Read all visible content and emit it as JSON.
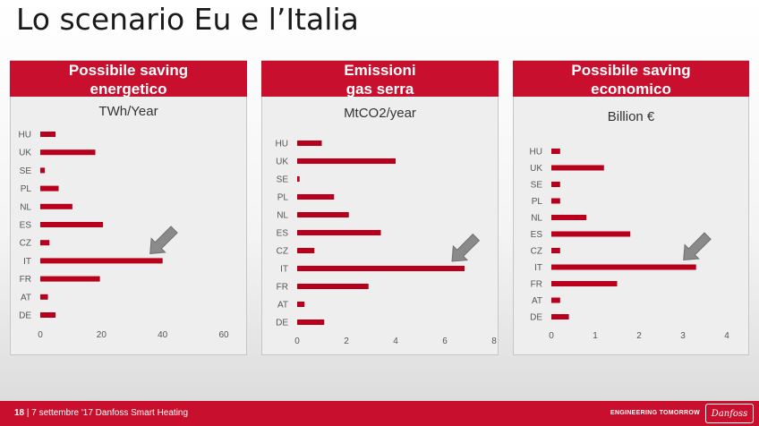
{
  "page": {
    "title": "Lo scenario Eu e l’Italia"
  },
  "panels": [
    {
      "header": [
        "Possibile saving",
        "energetico"
      ],
      "unit": "TWh/Year"
    },
    {
      "header": [
        "Emissioni",
        "gas serra"
      ],
      "unit": "MtCO2/year"
    },
    {
      "header": [
        "Possibile saving",
        "economico"
      ],
      "unit": "Billion €"
    }
  ],
  "chart_data": [
    {
      "type": "bar",
      "orientation": "horizontal",
      "title": "Possibile saving energetico",
      "xlabel": "TWh/Year",
      "categories": [
        "HU",
        "UK",
        "SE",
        "PL",
        "NL",
        "ES",
        "CZ",
        "IT",
        "FR",
        "AT",
        "DE"
      ],
      "values": [
        5,
        18,
        1.5,
        6,
        10.5,
        20.5,
        3,
        40,
        19.5,
        2.5,
        5
      ],
      "xlim": [
        0,
        60
      ],
      "xticks": [
        0,
        20,
        40,
        60
      ],
      "xtick_labels": [
        "0",
        "20",
        "40",
        "60"
      ],
      "highlight": "IT",
      "bar_color": "#b8001c",
      "grid": false
    },
    {
      "type": "bar",
      "orientation": "horizontal",
      "title": "Emissioni gas serra",
      "xlabel": "MtCO2/year",
      "categories": [
        "HU",
        "UK",
        "SE",
        "PL",
        "NL",
        "ES",
        "CZ",
        "IT",
        "FR",
        "AT",
        "DE"
      ],
      "values": [
        1.0,
        4.0,
        0.1,
        1.5,
        2.1,
        3.4,
        0.7,
        6.8,
        2.9,
        0.3,
        1.1
      ],
      "xlim": [
        0,
        8
      ],
      "xticks": [
        0,
        2,
        4,
        6,
        8
      ],
      "xtick_labels": [
        "0",
        "2",
        "4",
        "6",
        "8"
      ],
      "highlight": "IT",
      "bar_color": "#b8001c",
      "grid": false
    },
    {
      "type": "bar",
      "orientation": "horizontal",
      "title": "Possibile saving economico",
      "xlabel": "Billion €",
      "categories": [
        "HU",
        "UK",
        "SE",
        "PL",
        "NL",
        "ES",
        "CZ",
        "IT",
        "FR",
        "AT",
        "DE"
      ],
      "values": [
        0.2,
        1.2,
        0.2,
        0.2,
        0.8,
        1.8,
        0.2,
        3.3,
        1.5,
        0.2,
        0.4
      ],
      "xlim": [
        0,
        4
      ],
      "xticks": [
        0,
        1,
        2,
        3,
        4
      ],
      "xtick_labels": [
        "0",
        "1",
        "2",
        "3",
        "4"
      ],
      "highlight": "IT",
      "bar_color": "#b8001c",
      "grid": false
    }
  ],
  "footer": {
    "slide_number": "18",
    "separator": " | ",
    "text": "7 settembre '17 Danfoss Smart Heating",
    "tagline": "ENGINEERING TOMORROW",
    "logo_text": "Danfoss"
  },
  "colors": {
    "accent": "#c8102e",
    "bar": "#b8001c",
    "arrow": "#8a8a8a"
  }
}
